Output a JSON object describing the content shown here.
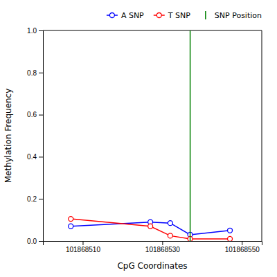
{
  "chart_data": {
    "type": "line",
    "xlabel": "CpG Coordinates",
    "ylabel": "Methylation Frequency",
    "x": [
      101868507,
      101868527,
      101868532,
      101868537,
      101868547
    ],
    "series": [
      {
        "name": "A SNP",
        "color": "blue",
        "marker": "circle",
        "line_style": "solid",
        "values": [
          0.07,
          0.09,
          0.085,
          0.03,
          0.05
        ]
      },
      {
        "name": "T SNP",
        "color": "red",
        "marker": "circle",
        "line_style": "solid",
        "values": [
          0.105,
          0.07,
          0.025,
          0.01,
          0.01
        ]
      },
      {
        "name": "SNP Position",
        "color": "green",
        "type": "vline",
        "line_style": "solid",
        "x": [
          101868537
        ]
      }
    ],
    "xlim": [
      101868500,
      101868555
    ],
    "ylim": [
      0.0,
      1.0
    ],
    "xticks": [
      101868510,
      101868530,
      101868550
    ],
    "yticks": [
      {
        "value": 0.0,
        "label": "0.0"
      },
      0.2,
      0.4,
      0.6,
      0.8,
      {
        "value": 1.0,
        "label": "1.0"
      }
    ],
    "grid": false,
    "legend": "upper right"
  }
}
